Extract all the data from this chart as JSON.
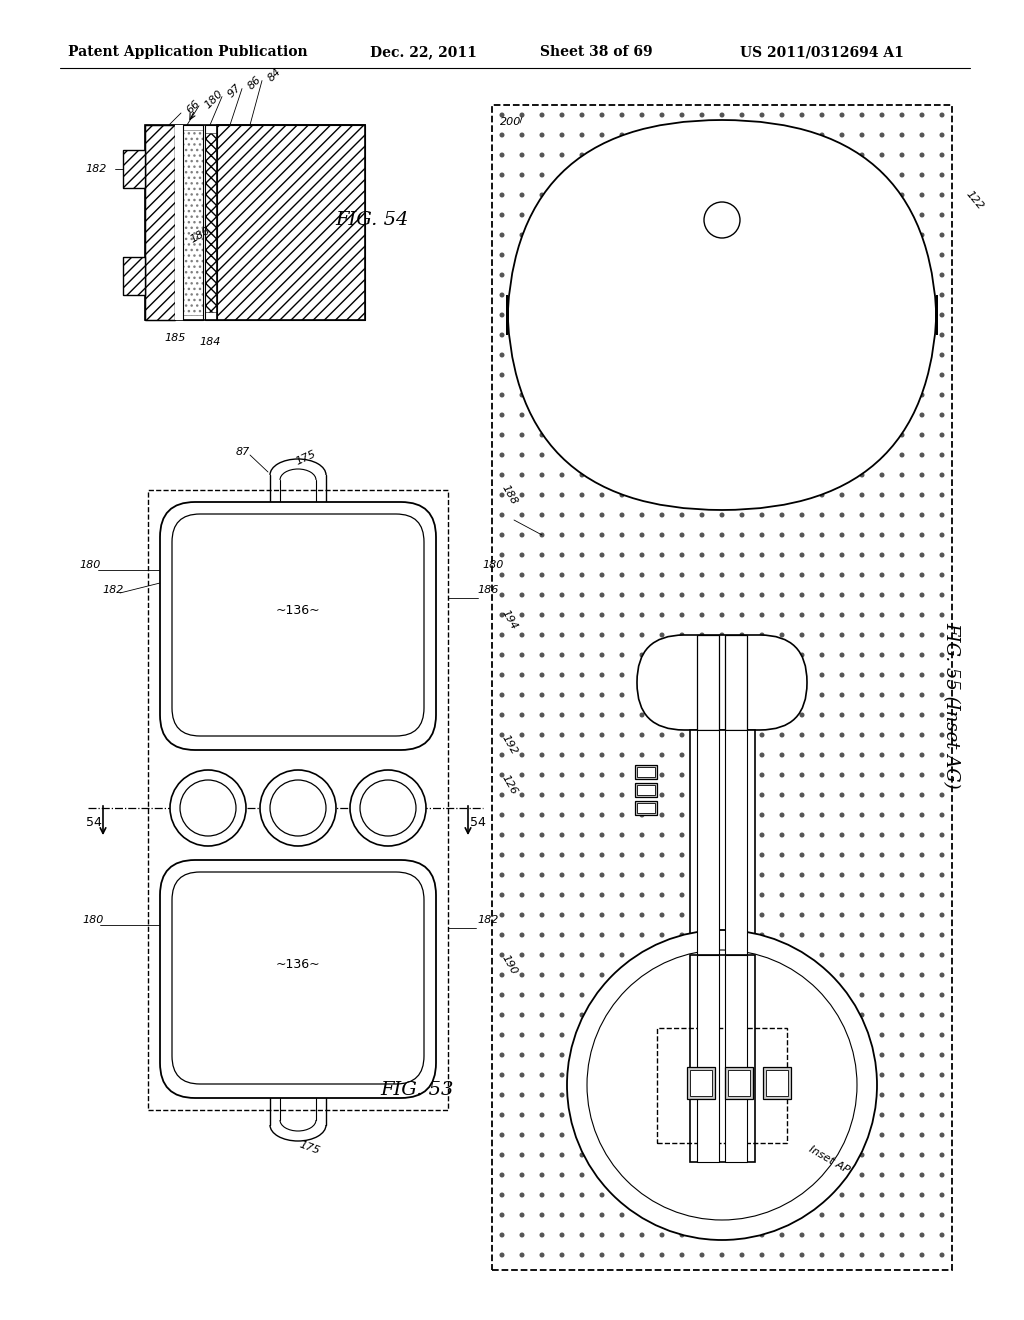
{
  "bg_color": "#ffffff",
  "header_text": "Patent Application Publication",
  "header_date": "Dec. 22, 2011",
  "header_sheet": "Sheet 38 of 69",
  "header_patent": "US 2011/0312694 A1",
  "fig54_label": "FIG. 54",
  "fig53_label": "FIG. 53",
  "fig55_label": "FIG. 55 (Inset AG)"
}
